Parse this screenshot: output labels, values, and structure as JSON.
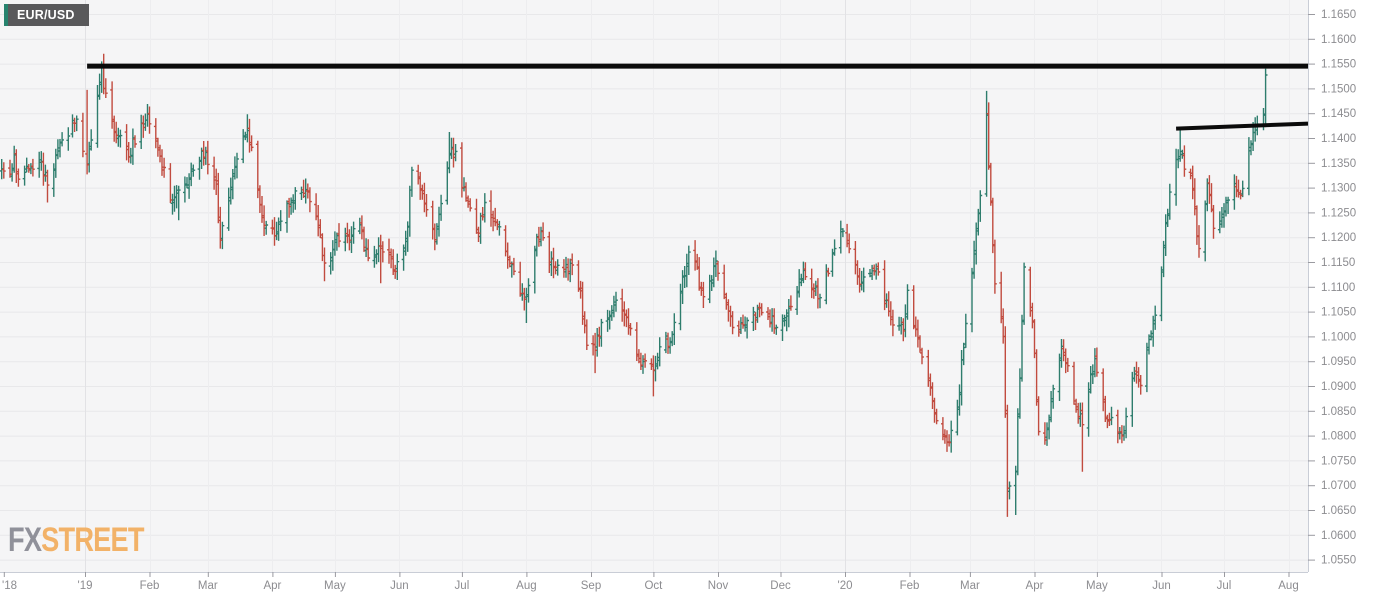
{
  "instrument_chip": {
    "label": "EUR/USD"
  },
  "watermark": {
    "fx": "FX",
    "street": "STREET"
  },
  "colors": {
    "up": "#2e7d6d",
    "down": "#c14b3f",
    "plot_bg": "#f5f5f6",
    "grid": "#e8e8ea",
    "grid_month": "#ededef",
    "grid_year": "#e2e2e5",
    "border": "#c9cdd6",
    "tick": "#9a9aa0",
    "axis_text": "#8c8c90",
    "trendline": "#0b0b0b",
    "chip_bg": "#59595b",
    "chip_accent": "#27836e",
    "watermark_fx": "#90919a",
    "watermark_street": "#f2b268"
  },
  "chart_data": {
    "type": "ohlc",
    "title": "EUR/USD",
    "timeframe": "daily",
    "grid": "on",
    "legend": "none",
    "x_range": [
      "2018-11-22",
      "2020-08-11"
    ],
    "y_axis": {
      "min": 1.0525,
      "max": 1.1678,
      "tick_step": 0.005,
      "labels": [
        "1.1650",
        "1.1600",
        "1.1550",
        "1.1500",
        "1.1450",
        "1.1400",
        "1.1350",
        "1.1300",
        "1.1250",
        "1.1200",
        "1.1150",
        "1.1100",
        "1.1050",
        "1.1000",
        "1.0950",
        "1.0900",
        "1.0850",
        "1.0800",
        "1.0750",
        "1.0700",
        "1.0650",
        "1.0600",
        "1.0550"
      ]
    },
    "x_axis": {
      "ticks": [
        {
          "d": "2018-11-23",
          "label": "'18",
          "year": true,
          "first": true
        },
        {
          "d": "2019-01-01",
          "label": "'19",
          "year": true
        },
        {
          "d": "2019-02-01",
          "label": "Feb"
        },
        {
          "d": "2019-03-01",
          "label": "Mar"
        },
        {
          "d": "2019-04-01",
          "label": "Apr"
        },
        {
          "d": "2019-05-01",
          "label": "May"
        },
        {
          "d": "2019-06-01",
          "label": "Jun"
        },
        {
          "d": "2019-07-01",
          "label": "Jul"
        },
        {
          "d": "2019-08-01",
          "label": "Aug"
        },
        {
          "d": "2019-09-01",
          "label": "Sep"
        },
        {
          "d": "2019-10-01",
          "label": "Oct"
        },
        {
          "d": "2019-11-01",
          "label": "Nov"
        },
        {
          "d": "2019-12-01",
          "label": "Dec"
        },
        {
          "d": "2020-01-01",
          "label": "'20",
          "year": true
        },
        {
          "d": "2020-02-01",
          "label": "Feb"
        },
        {
          "d": "2020-03-01",
          "label": "Mar"
        },
        {
          "d": "2020-04-01",
          "label": "Apr"
        },
        {
          "d": "2020-05-01",
          "label": "May"
        },
        {
          "d": "2020-06-01",
          "label": "Jun"
        },
        {
          "d": "2020-07-01",
          "label": "Jul"
        },
        {
          "d": "2020-08-01",
          "label": "Aug"
        }
      ]
    },
    "trendlines": [
      {
        "name": "resistance-1.1545",
        "from_date": "2019-01-02",
        "from_price": 1.1545,
        "to_date": "2020-08-11",
        "to_price": 1.1545,
        "stroke_width": 5
      },
      {
        "name": "resistance-1.1420",
        "from_date": "2020-06-08",
        "from_price": 1.1419,
        "to_date": "2020-08-11",
        "to_price": 1.1429,
        "stroke_width": 4
      }
    ],
    "anchors": [
      {
        "d": "2018-11-22",
        "c": 1.1338
      },
      {
        "d": "2018-11-26",
        "c": 1.1327
      },
      {
        "d": "2018-11-28",
        "c": 1.1366
      },
      {
        "d": "2018-11-30",
        "c": 1.1317
      },
      {
        "d": "2018-12-04",
        "c": 1.1343
      },
      {
        "d": "2018-12-10",
        "c": 1.1356
      },
      {
        "d": "2018-12-14",
        "c": 1.1305,
        "l": 1.127
      },
      {
        "d": "2018-12-19",
        "c": 1.138
      },
      {
        "d": "2018-12-24",
        "c": 1.1404
      },
      {
        "d": "2018-12-28",
        "c": 1.1438
      },
      {
        "d": "2019-01-02",
        "c": 1.1346,
        "h": 1.1497
      },
      {
        "d": "2019-01-04",
        "c": 1.1396
      },
      {
        "d": "2019-01-09",
        "c": 1.1543
      },
      {
        "d": "2019-01-10",
        "c": 1.15,
        "h": 1.157
      },
      {
        "d": "2019-01-15",
        "c": 1.1413
      },
      {
        "d": "2019-01-22",
        "c": 1.1362
      },
      {
        "d": "2019-01-28",
        "c": 1.143
      },
      {
        "d": "2019-01-31",
        "c": 1.1448
      },
      {
        "d": "2019-02-06",
        "c": 1.1364
      },
      {
        "d": "2019-02-11",
        "c": 1.1275
      },
      {
        "d": "2019-02-15",
        "c": 1.1295,
        "l": 1.1234
      },
      {
        "d": "2019-02-22",
        "c": 1.1335
      },
      {
        "d": "2019-02-28",
        "c": 1.1371
      },
      {
        "d": "2019-03-05",
        "c": 1.1307
      },
      {
        "d": "2019-03-07",
        "c": 1.1194,
        "l": 1.1177
      },
      {
        "d": "2019-03-13",
        "c": 1.1328
      },
      {
        "d": "2019-03-20",
        "c": 1.1415,
        "h": 1.1448
      },
      {
        "d": "2019-03-26",
        "c": 1.1266
      },
      {
        "d": "2019-03-28",
        "c": 1.1224
      },
      {
        "d": "2019-04-02",
        "c": 1.1203
      },
      {
        "d": "2019-04-10",
        "c": 1.1274
      },
      {
        "d": "2019-04-17",
        "c": 1.1296
      },
      {
        "d": "2019-04-23",
        "c": 1.1224
      },
      {
        "d": "2019-04-26",
        "c": 1.1148,
        "l": 1.1111
      },
      {
        "d": "2019-05-01",
        "c": 1.1195
      },
      {
        "d": "2019-05-08",
        "c": 1.1194
      },
      {
        "d": "2019-05-13",
        "c": 1.1225
      },
      {
        "d": "2019-05-17",
        "c": 1.1158
      },
      {
        "d": "2019-05-23",
        "c": 1.1182,
        "l": 1.1107
      },
      {
        "d": "2019-05-30",
        "c": 1.1131
      },
      {
        "d": "2019-06-05",
        "c": 1.1222
      },
      {
        "d": "2019-06-07",
        "c": 1.1335
      },
      {
        "d": "2019-06-12",
        "c": 1.1288
      },
      {
        "d": "2019-06-18",
        "c": 1.1195
      },
      {
        "d": "2019-06-25",
        "c": 1.1366,
        "h": 1.1412
      },
      {
        "d": "2019-06-28",
        "c": 1.1373
      },
      {
        "d": "2019-07-03",
        "c": 1.1279
      },
      {
        "d": "2019-07-09",
        "c": 1.1208
      },
      {
        "d": "2019-07-12",
        "c": 1.127
      },
      {
        "d": "2019-07-19",
        "c": 1.1221
      },
      {
        "d": "2019-07-25",
        "c": 1.1145
      },
      {
        "d": "2019-07-31",
        "c": 1.1075
      },
      {
        "d": "2019-08-01",
        "c": 1.1084,
        "l": 1.1027
      },
      {
        "d": "2019-08-06",
        "c": 1.1201
      },
      {
        "d": "2019-08-09",
        "c": 1.1199
      },
      {
        "d": "2019-08-14",
        "c": 1.1139
      },
      {
        "d": "2019-08-23",
        "c": 1.1144
      },
      {
        "d": "2019-08-27",
        "c": 1.1092
      },
      {
        "d": "2019-08-30",
        "c": 1.0982
      },
      {
        "d": "2019-09-03",
        "c": 1.0972,
        "l": 1.0926
      },
      {
        "d": "2019-09-06",
        "c": 1.1028
      },
      {
        "d": "2019-09-13",
        "c": 1.1073
      },
      {
        "d": "2019-09-20",
        "c": 1.1016
      },
      {
        "d": "2019-09-25",
        "c": 1.0942
      },
      {
        "d": "2019-10-01",
        "c": 1.0932,
        "l": 1.0879
      },
      {
        "d": "2019-10-04",
        "c": 1.0979
      },
      {
        "d": "2019-10-10",
        "c": 1.1004
      },
      {
        "d": "2019-10-18",
        "c": 1.117
      },
      {
        "d": "2019-10-21",
        "c": 1.115
      },
      {
        "d": "2019-10-25",
        "c": 1.108
      },
      {
        "d": "2019-10-31",
        "c": 1.1152
      },
      {
        "d": "2019-11-08",
        "c": 1.1018
      },
      {
        "d": "2019-11-14",
        "c": 1.1023
      },
      {
        "d": "2019-11-21",
        "c": 1.1058
      },
      {
        "d": "2019-11-29",
        "c": 1.1018
      },
      {
        "d": "2019-12-06",
        "c": 1.106
      },
      {
        "d": "2019-12-12",
        "c": 1.1133
      },
      {
        "d": "2019-12-20",
        "c": 1.1078
      },
      {
        "d": "2019-12-27",
        "c": 1.1177
      },
      {
        "d": "2019-12-31",
        "c": 1.1212
      },
      {
        "d": "2020-01-08",
        "c": 1.1105
      },
      {
        "d": "2020-01-16",
        "c": 1.1136
      },
      {
        "d": "2020-01-24",
        "c": 1.1023
      },
      {
        "d": "2020-01-29",
        "c": 1.1011
      },
      {
        "d": "2020-01-31",
        "c": 1.1093
      },
      {
        "d": "2020-02-05",
        "c": 1.0998
      },
      {
        "d": "2020-02-10",
        "c": 1.0911
      },
      {
        "d": "2020-02-14",
        "c": 1.083
      },
      {
        "d": "2020-02-20",
        "c": 1.0786,
        "l": 1.0778
      },
      {
        "d": "2020-02-24",
        "c": 1.0853
      },
      {
        "d": "2020-02-28",
        "c": 1.1026
      },
      {
        "d": "2020-03-03",
        "c": 1.1173
      },
      {
        "d": "2020-03-06",
        "c": 1.1284
      },
      {
        "d": "2020-03-09",
        "c": 1.1446,
        "h": 1.1495
      },
      {
        "d": "2020-03-11",
        "c": 1.127
      },
      {
        "d": "2020-03-13",
        "c": 1.1106
      },
      {
        "d": "2020-03-17",
        "c": 1.1
      },
      {
        "d": "2020-03-19",
        "c": 1.0694,
        "l": 1.0636
      },
      {
        "d": "2020-03-23",
        "c": 1.0727,
        "l": 1.064
      },
      {
        "d": "2020-03-26",
        "c": 1.103
      },
      {
        "d": "2020-03-27",
        "c": 1.114
      },
      {
        "d": "2020-03-31",
        "c": 1.1031
      },
      {
        "d": "2020-04-03",
        "c": 1.0808
      },
      {
        "d": "2020-04-06",
        "c": 1.0791
      },
      {
        "d": "2020-04-14",
        "c": 1.098
      },
      {
        "d": "2020-04-21",
        "c": 1.0858
      },
      {
        "d": "2020-04-24",
        "c": 1.0822,
        "l": 1.0727
      },
      {
        "d": "2020-04-30",
        "c": 1.0955
      },
      {
        "d": "2020-05-05",
        "c": 1.0837
      },
      {
        "d": "2020-05-11",
        "c": 1.0807
      },
      {
        "d": "2020-05-14",
        "c": 1.0805
      },
      {
        "d": "2020-05-18",
        "c": 1.0915
      },
      {
        "d": "2020-05-22",
        "c": 1.0901
      },
      {
        "d": "2020-05-27",
        "c": 1.1006
      },
      {
        "d": "2020-06-01",
        "c": 1.1134
      },
      {
        "d": "2020-06-05",
        "c": 1.1291
      },
      {
        "d": "2020-06-10",
        "c": 1.1373,
        "h": 1.1422
      },
      {
        "d": "2020-06-15",
        "c": 1.1324
      },
      {
        "d": "2020-06-19",
        "c": 1.1177
      },
      {
        "d": "2020-06-23",
        "c": 1.1308
      },
      {
        "d": "2020-06-26",
        "c": 1.1218
      },
      {
        "d": "2020-07-01",
        "c": 1.1251
      },
      {
        "d": "2020-07-06",
        "c": 1.1308
      },
      {
        "d": "2020-07-09",
        "c": 1.1284
      },
      {
        "d": "2020-07-15",
        "c": 1.1411
      },
      {
        "d": "2020-07-17",
        "c": 1.1428
      },
      {
        "d": "2020-07-20",
        "c": 1.1446
      },
      {
        "d": "2020-07-21",
        "c": 1.1527,
        "h": 1.154,
        "l": 1.1422
      }
    ],
    "skip_days": [
      "2018-12-25",
      "2019-01-01",
      "2019-12-25",
      "2020-01-01"
    ]
  }
}
